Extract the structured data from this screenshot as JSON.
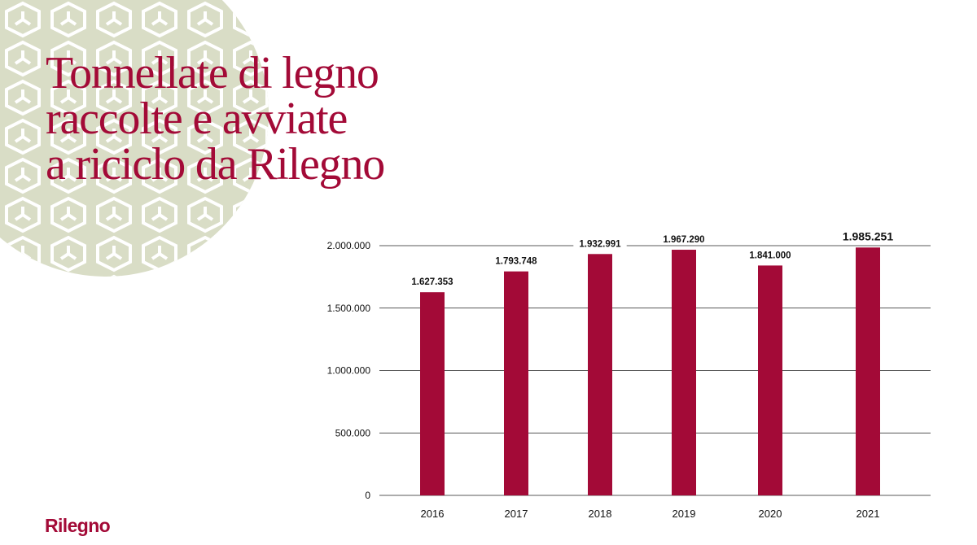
{
  "title_lines": [
    "Tonnellate di legno",
    "raccolte e avviate",
    "a riciclo da Rilegno"
  ],
  "logo_text": "Rilegno",
  "colors": {
    "brand": "#a30a37",
    "decor_background": "#d9ddc6"
  },
  "chart_data": {
    "type": "bar",
    "categories": [
      "2016",
      "2017",
      "2018",
      "2019",
      "2020",
      "2021"
    ],
    "values": [
      1627353,
      1793748,
      1932991,
      1967290,
      1841000,
      1985251
    ],
    "value_labels": [
      "1.627.353",
      "1.793.748",
      "1.932.991",
      "1.967.290",
      "1.841.000",
      "1.985.251"
    ],
    "y_ticks": [
      0,
      500000,
      1000000,
      1500000,
      2000000
    ],
    "y_tick_labels": [
      "0",
      "500.000",
      "1.000.000",
      "1.500.000",
      "2.000.000"
    ],
    "ylim": [
      0,
      2000000
    ],
    "grid": true,
    "legend": "none",
    "bar_color": "#a30a37"
  }
}
